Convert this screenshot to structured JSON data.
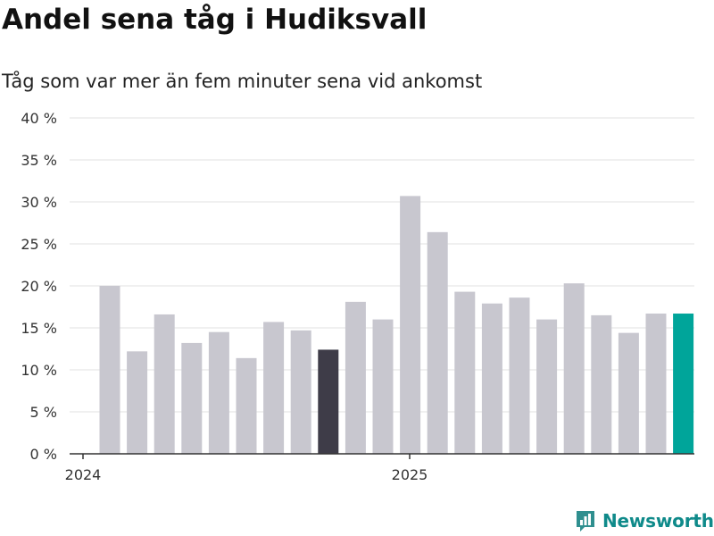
{
  "colors": {
    "bar_default": "#c8c7cf",
    "bar_highlight_dark": "#3e3c48",
    "bar_highlight_accent": "#00a59a",
    "grid": "#e2e2e2",
    "axis": "#333333",
    "brand": "#0f8a8a"
  },
  "chart_data": {
    "type": "bar",
    "title": "Andel sena tåg i Hudiksvall",
    "subtitle": "Tåg som var mer än fem minuter sena vid ankomst",
    "xlabel": "",
    "ylabel": "",
    "ylim": [
      0,
      40
    ],
    "yticks": [
      0,
      5,
      10,
      15,
      20,
      25,
      30,
      35,
      40
    ],
    "ytick_labels": [
      "0 %",
      "5 %",
      "10 %",
      "15 %",
      "20 %",
      "25 %",
      "30 %",
      "35 %",
      "40 %"
    ],
    "xtick_labels": [
      "2024",
      "2025"
    ],
    "categories": [
      "2024-01",
      "2024-02",
      "2024-03",
      "2024-04",
      "2024-05",
      "2024-06",
      "2024-07",
      "2024-08",
      "2024-09",
      "2024-10",
      "2024-11",
      "2024-12",
      "2025-01",
      "2025-02",
      "2025-03",
      "2025-04",
      "2025-05",
      "2025-06",
      "2025-07",
      "2025-08",
      "2025-09",
      "2025-10"
    ],
    "values": [
      20.0,
      12.2,
      16.6,
      13.2,
      14.5,
      11.4,
      15.7,
      14.7,
      12.4,
      18.1,
      16.0,
      30.7,
      26.4,
      19.3,
      17.9,
      18.6,
      16.0,
      20.3,
      16.5,
      14.4,
      16.7,
      16.7
    ],
    "highlight": {
      "8": "dark",
      "21": "accent"
    },
    "grid": true
  },
  "brand": {
    "name": "Newsworthy"
  }
}
